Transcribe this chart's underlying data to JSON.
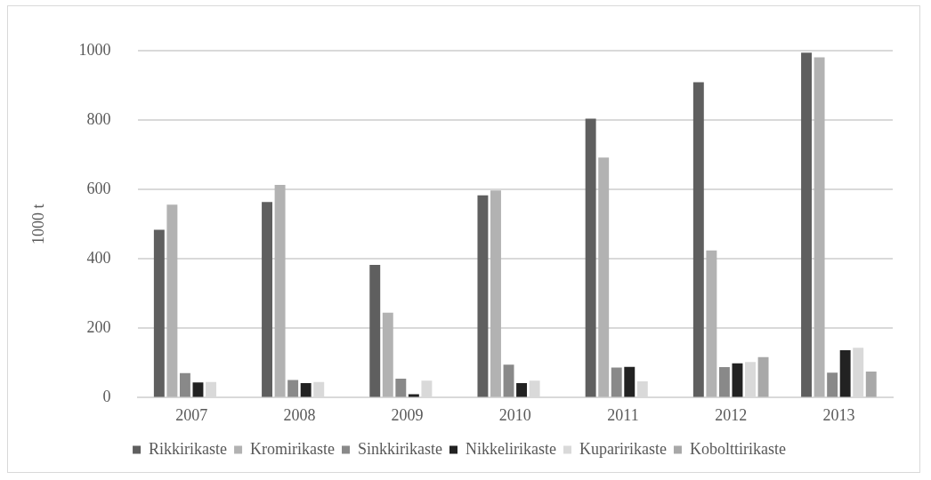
{
  "chart_data": {
    "type": "bar",
    "ylabel": "1000 t",
    "categories": [
      "2007",
      "2008",
      "2009",
      "2010",
      "2011",
      "2012",
      "2013"
    ],
    "series": [
      {
        "name": "Rikkirikaste",
        "color": "#5f5f5f",
        "values": [
          484,
          564,
          383,
          583,
          804,
          909,
          994
        ]
      },
      {
        "name": "Kromirikaste",
        "color": "#b2b2b2",
        "values": [
          556,
          613,
          245,
          597,
          692,
          424,
          981
        ]
      },
      {
        "name": "Sinkkirikaste",
        "color": "#898989",
        "values": [
          71,
          51,
          55,
          95,
          87,
          88,
          72
        ]
      },
      {
        "name": "Nikkelirikaste",
        "color": "#222222",
        "values": [
          44,
          42,
          10,
          42,
          89,
          99,
          137
        ]
      },
      {
        "name": "Kuparirikaste",
        "color": "#d9d9d9",
        "values": [
          45,
          45,
          49,
          49,
          47,
          103,
          144
        ]
      },
      {
        "name": "Kobolttirikaste",
        "color": "#a8a8a8",
        "values": [
          null,
          null,
          null,
          null,
          null,
          117,
          75
        ]
      }
    ],
    "ylim": [
      0,
      1000
    ],
    "yticks": [
      0,
      200,
      400,
      600,
      800,
      1000
    ],
    "grid": "y",
    "legend": "bottom"
  }
}
